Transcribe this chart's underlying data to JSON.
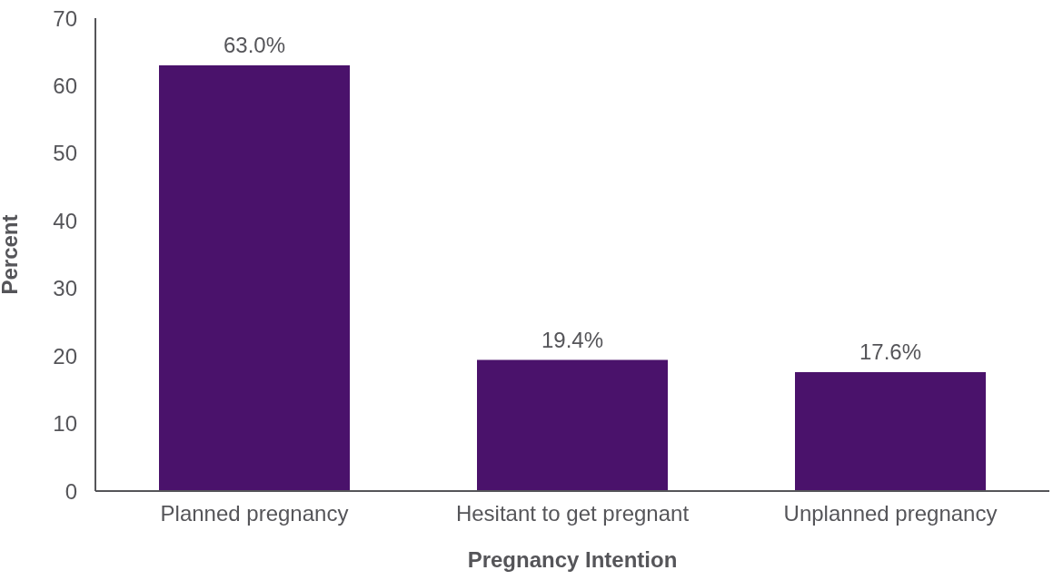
{
  "chart_data": {
    "type": "bar",
    "xlabel": "Pregnancy Intention",
    "ylabel": "Percent",
    "categories": [
      "Planned pregnancy",
      "Hesitant to get pregnant",
      "Unplanned pregnancy"
    ],
    "values": [
      63.0,
      19.4,
      17.6
    ],
    "value_labels": [
      "63.0%",
      "19.4%",
      "17.6%"
    ],
    "color": "#4a126b",
    "ylim": [
      0,
      70
    ],
    "yticks": [
      0,
      10,
      20,
      30,
      40,
      50,
      60,
      70
    ],
    "grid": false,
    "legend": false
  }
}
